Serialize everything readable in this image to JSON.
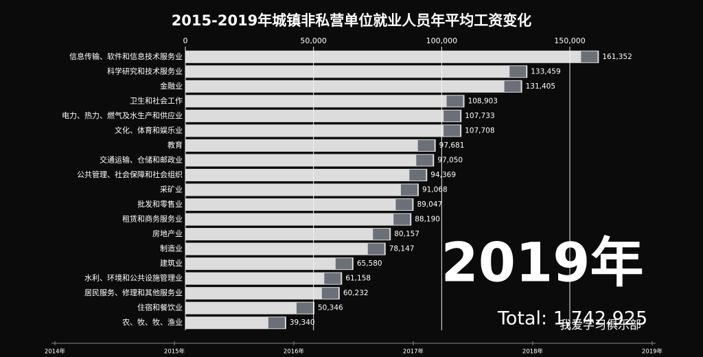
{
  "chart_data": {
    "type": "bar",
    "orientation": "horizontal",
    "title": "2015-2019年城镇非私营单位就业人员年平均工资变化",
    "categories": [
      "信息传输、软件和信息技术服务业",
      "科学研究和技术服务业",
      "金融业",
      "卫生和社会工作",
      "电力、热力、燃气及水生产和供应业",
      "文化、体育和娱乐业",
      "教育",
      "交通运输、仓储和邮政业",
      "公共管理、社会保障和社会组织",
      "采矿业",
      "批发和零售业",
      "租赁和商务服务业",
      "房地产业",
      "制造业",
      "建筑业",
      "水利、环境和公共设施管理业",
      "居民服务、修理和其他服务业",
      "住宿和餐饮业",
      "农、牧、牧、渔业"
    ],
    "values": [
      161352,
      133459,
      131405,
      108903,
      107733,
      107708,
      97681,
      97050,
      94369,
      91068,
      89047,
      88190,
      80157,
      78147,
      65580,
      61158,
      60232,
      50346,
      39340
    ],
    "value_labels": [
      "161,352",
      "133,459",
      "131,405",
      "108,903",
      "107,733",
      "107,708",
      "97,681",
      "97,050",
      "94,369",
      "91,068",
      "89,047",
      "88,190",
      "80,157",
      "78,147",
      "65,580",
      "61,158",
      "60,232",
      "50,346",
      "39,340"
    ],
    "color": "#dcdcdc",
    "xlim": [
      0,
      195000
    ],
    "xticks": [
      0,
      {
        "value": 50000,
        "label": "50,000"
      },
      {
        "value": 100000,
        "label": "100,000"
      },
      {
        "value": 150000,
        "label": "150,000"
      }
    ],
    "grid": true,
    "year_label": "2019年",
    "total": "Total: 1,742,925",
    "timeline": [
      "2014年",
      "2015年",
      "2016年",
      "2017年",
      "2018年",
      "2019年"
    ],
    "watermark": "我爱学习俱乐部"
  }
}
